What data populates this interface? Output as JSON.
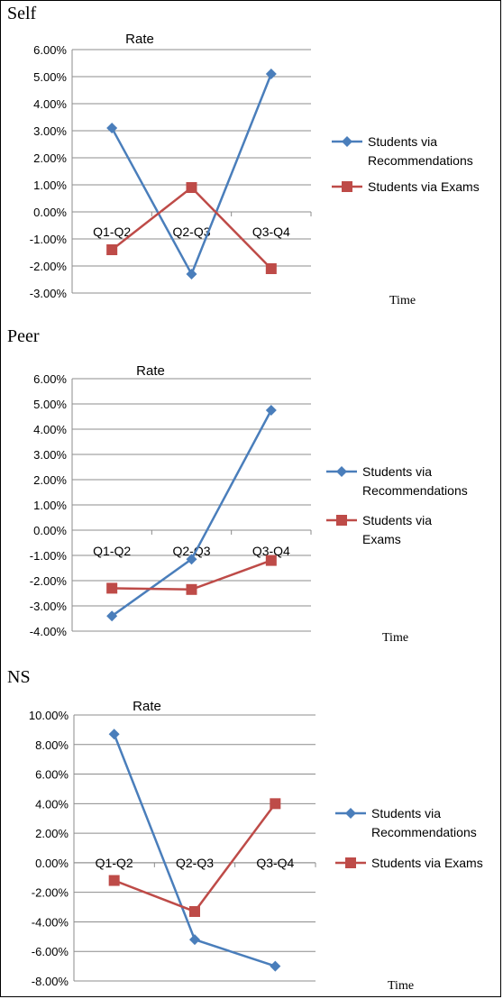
{
  "charts": [
    {
      "panel_title": "Self",
      "x_axis_name": "Time",
      "chart_data": {
        "type": "line",
        "title": "Rate",
        "categories": [
          "Q1-Q2",
          "Q2-Q3",
          "Q3-Q4"
        ],
        "ylim": [
          -0.03,
          0.06
        ],
        "y_ticks": [
          "6.00%",
          "5.00%",
          "4.00%",
          "3.00%",
          "2.00%",
          "1.00%",
          "0.00%",
          "-1.00%",
          "-2.00%",
          "-3.00%"
        ],
        "y_tick_values": [
          0.06,
          0.05,
          0.04,
          0.03,
          0.02,
          0.01,
          0,
          -0.01,
          -0.02,
          -0.03
        ],
        "grid": true,
        "legend": "right",
        "series": [
          {
            "name_lines": [
              "Students via",
              "Recommendations"
            ],
            "color": "#4a7ebb",
            "marker": "diamond",
            "values": [
              0.031,
              -0.023,
              0.051
            ]
          },
          {
            "name_lines": [
              "Students via Exams"
            ],
            "color": "#be4b48",
            "marker": "square",
            "values": [
              -0.014,
              0.009,
              -0.021
            ]
          }
        ]
      }
    },
    {
      "panel_title": "Peer",
      "x_axis_name": "Time",
      "chart_data": {
        "type": "line",
        "title": "Rate",
        "categories": [
          "Q1-Q2",
          "Q2-Q3",
          "Q3-Q4"
        ],
        "ylim": [
          -0.04,
          0.06
        ],
        "y_ticks": [
          "6.00%",
          "5.00%",
          "4.00%",
          "3.00%",
          "2.00%",
          "1.00%",
          "0.00%",
          "-1.00%",
          "-2.00%",
          "-3.00%",
          "-4.00%"
        ],
        "y_tick_values": [
          0.06,
          0.05,
          0.04,
          0.03,
          0.02,
          0.01,
          0,
          -0.01,
          -0.02,
          -0.03,
          -0.04
        ],
        "grid": true,
        "legend": "right",
        "series": [
          {
            "name_lines": [
              "Students via",
              "Recommendations"
            ],
            "color": "#4a7ebb",
            "marker": "diamond",
            "values": [
              -0.034,
              -0.0115,
              0.0475
            ]
          },
          {
            "name_lines": [
              "Students via",
              "Exams"
            ],
            "color": "#be4b48",
            "marker": "square",
            "values": [
              -0.023,
              -0.0235,
              -0.012
            ]
          }
        ]
      }
    },
    {
      "panel_title": "NS",
      "x_axis_name": "Time",
      "chart_data": {
        "type": "line",
        "title": "Rate",
        "categories": [
          "Q1-Q2",
          "Q2-Q3",
          "Q3-Q4"
        ],
        "ylim": [
          -0.08,
          0.1
        ],
        "y_ticks": [
          "10.00%",
          "8.00%",
          "6.00%",
          "4.00%",
          "2.00%",
          "0.00%",
          "-2.00%",
          "-4.00%",
          "-6.00%",
          "-8.00%"
        ],
        "y_tick_values": [
          0.1,
          0.08,
          0.06,
          0.04,
          0.02,
          0,
          -0.02,
          -0.04,
          -0.06,
          -0.08
        ],
        "grid": true,
        "legend": "right",
        "series": [
          {
            "name_lines": [
              "Students via",
              "Recommendations"
            ],
            "color": "#4a7ebb",
            "marker": "diamond",
            "values": [
              0.087,
              -0.052,
              -0.07
            ]
          },
          {
            "name_lines": [
              "Students via Exams"
            ],
            "color": "#be4b48",
            "marker": "square",
            "values": [
              -0.012,
              -0.033,
              0.04
            ]
          }
        ]
      }
    }
  ]
}
